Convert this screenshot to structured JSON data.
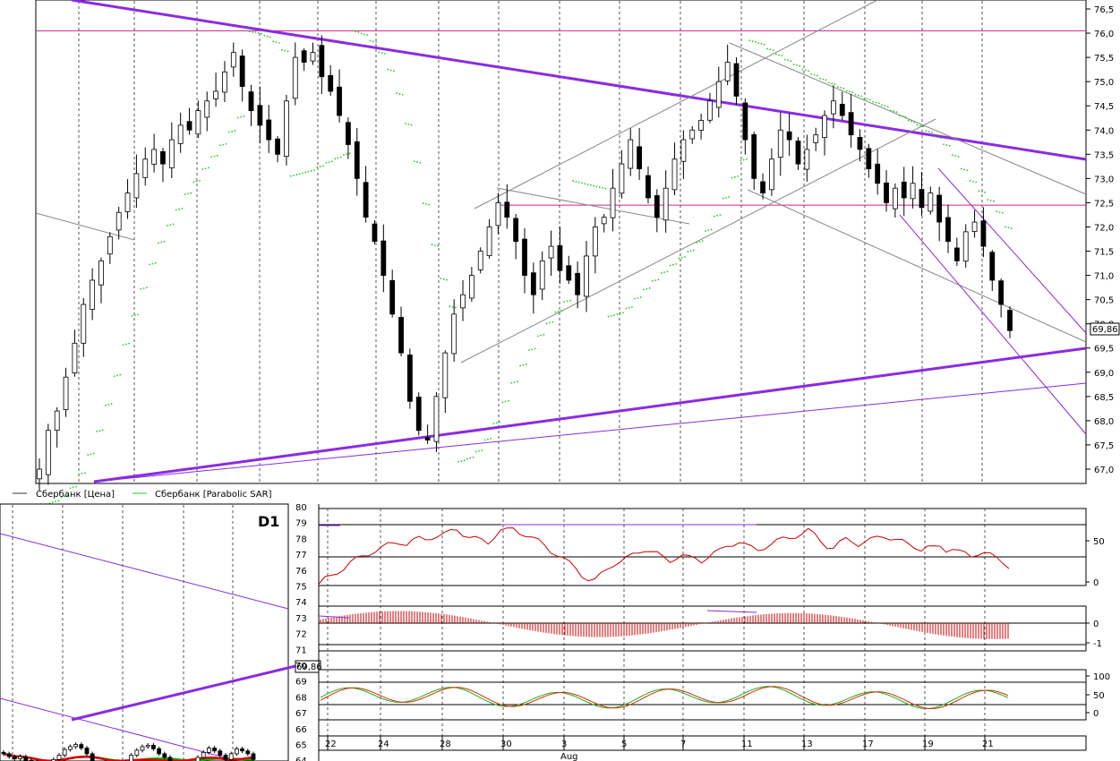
{
  "price_axis_ticks": [
    "76,5",
    "76,0",
    "75,5",
    "75,0",
    "74,5",
    "74,0",
    "73,5",
    "73,0",
    "72,5",
    "72,0",
    "71,5",
    "71,0",
    "70,5",
    "70,0",
    "69,5",
    "69,0",
    "68,5",
    "68,0",
    "67,5",
    "67,0"
  ],
  "last_price_label": "69,86",
  "legend": {
    "price": "Сбербанк [Цена]",
    "sar": "Сбербанк [Parabolic SAR]"
  },
  "timeframe_label": "D1",
  "left_axis_ticks": [
    "80",
    "79",
    "78",
    "77",
    "76",
    "75",
    "74",
    "73",
    "72",
    "71",
    "70",
    "69",
    "68",
    "67",
    "66",
    "65",
    "64"
  ],
  "mini_last_label": "69,86",
  "rsi_ticks": [
    "50",
    "0"
  ],
  "macd_ticks": [
    "0",
    "-1"
  ],
  "stoch_ticks": [
    "100",
    "50",
    "0"
  ],
  "date_labels": [
    "22",
    "24",
    "28",
    "30",
    "3",
    "5",
    "7",
    "11",
    "13",
    "17",
    "19",
    "21"
  ],
  "month_label": "Aug",
  "colors": {
    "trend": "#8a2be2",
    "level": "#d0208c",
    "sar": "#22cc22",
    "rsi": "#cc0000",
    "ma_red": "#dd0000",
    "ma_green": "#00bb00",
    "stoch_green": "#22aa22",
    "stoch_red": "#cc3300"
  },
  "chart_data": {
    "type": "candlestick",
    "series": [
      {
        "name": "Сбербанк [Цена]",
        "values": [
          67.0,
          67.8,
          68.2,
          68.9,
          69.6,
          70.4,
          70.9,
          71.3,
          71.8,
          72.3,
          72.7,
          73.1,
          73.4,
          73.6,
          73.3,
          73.8,
          74.1,
          74.0,
          74.4,
          74.6,
          74.8,
          75.2,
          75.6,
          74.9,
          74.4,
          74.1,
          73.8,
          73.5,
          74.6,
          75.5,
          75.4,
          75.6,
          75.1,
          74.8,
          74.3,
          73.7,
          73.0,
          72.2,
          71.7,
          71.0,
          70.2,
          69.4,
          68.4,
          67.8,
          67.6,
          68.5,
          69.4,
          70.2,
          70.6,
          71.0,
          71.5,
          72.0,
          72.5,
          72.2,
          71.7,
          71.0,
          70.6,
          71.3,
          71.6,
          71.1,
          70.9,
          70.6,
          71.4,
          72.0,
          72.2,
          72.8,
          73.3,
          73.8,
          73.2,
          72.6,
          72.2,
          72.8,
          73.4,
          73.8,
          74.0,
          74.2,
          74.6,
          75.0,
          75.4,
          74.7,
          73.8,
          73.0,
          72.7,
          73.4,
          74.0,
          73.8,
          73.3,
          73.6,
          73.9,
          74.3,
          74.6,
          74.3,
          73.9,
          73.6,
          73.2,
          72.9,
          72.5,
          72.8,
          72.6,
          72.9,
          72.4,
          72.7,
          72.1,
          71.7,
          71.3,
          71.9,
          72.1,
          71.6,
          70.9,
          70.4,
          69.86
        ]
      },
      {
        "name": "Сбербанк [Parabolic SAR]",
        "values": []
      }
    ],
    "ylim": [
      66.8,
      76.6
    ],
    "xlabel": "",
    "ylabel": ""
  }
}
